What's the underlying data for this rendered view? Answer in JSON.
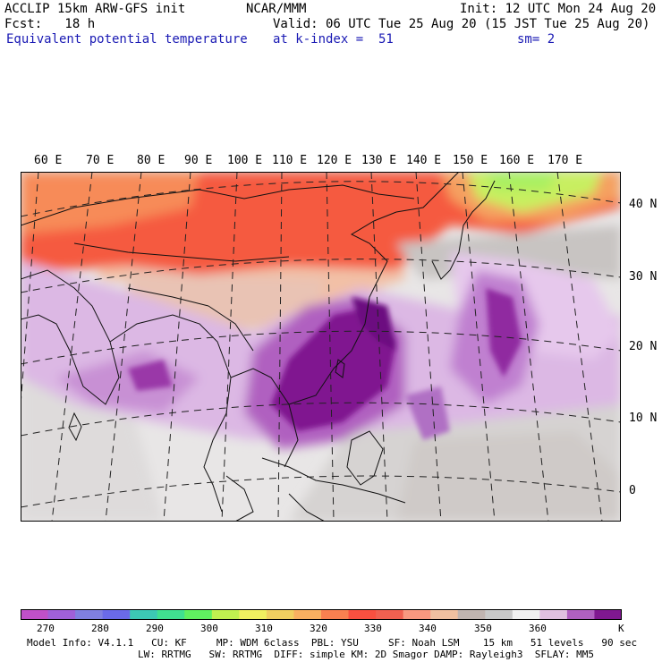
{
  "header": {
    "line1_left": "ACCLIP 15km ARW-GFS init",
    "line1_center": "NCAR/MMM",
    "line1_right": "Init: 12 UTC Mon 24 Aug 20",
    "line2_left": "Fcst:   18 h",
    "line2_right": "Valid: 06 UTC Tue 25 Aug 20 (15 JST Tue 25 Aug 20)",
    "line3_left": "Equivalent potential temperature",
    "line3_center": "at k-index =  51",
    "line3_right": "sm= 2"
  },
  "map": {
    "longitude_labels": [
      "60 E",
      "70 E",
      "80 E",
      "90 E",
      "100 E",
      "110 E",
      "120 E",
      "130 E",
      "140 E",
      "150 E",
      "160 E",
      "170 E"
    ],
    "latitude_labels": [
      "40 N",
      "30 N",
      "20 N",
      "10 N",
      "0"
    ]
  },
  "colorbar": {
    "colors": [
      "#c050c8",
      "#a060d8",
      "#8080e0",
      "#6a6ae8",
      "#3cc8b4",
      "#40e090",
      "#60f060",
      "#c0f050",
      "#f0f060",
      "#f0d060",
      "#f8b060",
      "#f88050",
      "#f85040",
      "#f06050",
      "#f89880",
      "#f0c0a0",
      "#c0b4b0",
      "#c8c8c8",
      "#f0f0f0",
      "#e0c0e0",
      "#b060c0",
      "#801890"
    ],
    "tick_labels": [
      "270",
      "280",
      "290",
      "300",
      "310",
      "320",
      "330",
      "340",
      "350",
      "360"
    ],
    "unit": "K"
  },
  "footer": {
    "line1": "Model Info: V4.1.1   CU: KF     MP: WDM 6class  PBL: YSU     SF: Noah LSM    15 km   51 levels   90 sec",
    "line2": "LW: RRTMG   SW: RRTMG  DIFF: simple KM: 2D Smagor DAMP: Rayleigh3  SFLAY: MM5"
  }
}
